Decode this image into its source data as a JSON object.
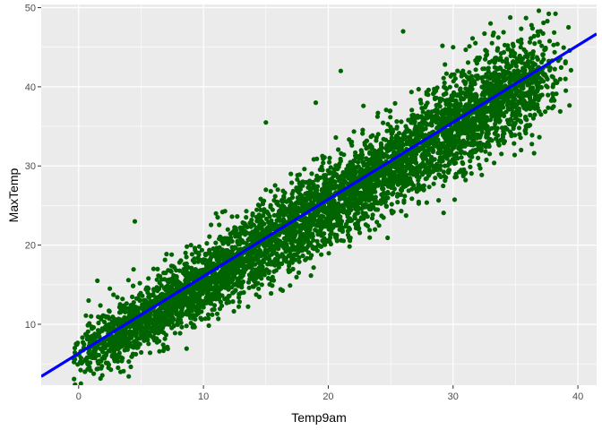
{
  "chart_data": {
    "type": "scatter",
    "xlabel": "Temp9am",
    "ylabel": "MaxTemp",
    "xlim": [
      -3,
      41.5
    ],
    "ylim": [
      2.3,
      50.4
    ],
    "x_ticks": [
      0,
      10,
      20,
      30,
      40
    ],
    "y_ticks": [
      10,
      20,
      30,
      40,
      50
    ],
    "x_tick_labels": [
      "0",
      "10",
      "20",
      "30",
      "40"
    ],
    "y_tick_labels": [
      "10",
      "20",
      "30",
      "40",
      "50"
    ],
    "grid": true,
    "points_sample": [
      {
        "x": 0.8,
        "y": 13.0
      },
      {
        "x": 1.5,
        "y": 15.5
      },
      {
        "x": 1.0,
        "y": 11.0
      },
      {
        "x": 0.5,
        "y": 4.0
      },
      {
        "x": 2.5,
        "y": 14.5
      },
      {
        "x": 3.0,
        "y": 7.5
      },
      {
        "x": 3.0,
        "y": 5.5
      },
      {
        "x": 4.0,
        "y": 12.0
      },
      {
        "x": 5.0,
        "y": 9.0
      },
      {
        "x": 6.0,
        "y": 17.0
      },
      {
        "x": 4.5,
        "y": 23.0
      },
      {
        "x": 7.0,
        "y": 10.0
      },
      {
        "x": 8.0,
        "y": 15.0
      },
      {
        "x": 9.0,
        "y": 20.0
      },
      {
        "x": 10.0,
        "y": 12.5
      },
      {
        "x": 11.0,
        "y": 24.0
      },
      {
        "x": 12.0,
        "y": 16.0
      },
      {
        "x": 13.0,
        "y": 22.0
      },
      {
        "x": 15.0,
        "y": 35.5
      },
      {
        "x": 14.0,
        "y": 19.0
      },
      {
        "x": 15.0,
        "y": 27.0
      },
      {
        "x": 16.0,
        "y": 22.0
      },
      {
        "x": 17.0,
        "y": 29.0
      },
      {
        "x": 18.0,
        "y": 24.0
      },
      {
        "x": 19.0,
        "y": 38.0
      },
      {
        "x": 20.0,
        "y": 27.0
      },
      {
        "x": 21.0,
        "y": 42.0
      },
      {
        "x": 22.0,
        "y": 30.0
      },
      {
        "x": 23.0,
        "y": 24.0
      },
      {
        "x": 24.0,
        "y": 34.0
      },
      {
        "x": 25.0,
        "y": 30.0
      },
      {
        "x": 26.0,
        "y": 47.0
      },
      {
        "x": 27.0,
        "y": 33.0
      },
      {
        "x": 28.0,
        "y": 39.0
      },
      {
        "x": 29.0,
        "y": 35.0
      },
      {
        "x": 30.0,
        "y": 45.0
      },
      {
        "x": 31.0,
        "y": 39.0
      },
      {
        "x": 32.0,
        "y": 31.0
      },
      {
        "x": 33.0,
        "y": 48.0
      },
      {
        "x": 34.0,
        "y": 42.0
      },
      {
        "x": 35.0,
        "y": 39.0
      },
      {
        "x": 36.0,
        "y": 44.0
      },
      {
        "x": 37.0,
        "y": 47.0
      },
      {
        "x": 38.0,
        "y": 40.0
      },
      {
        "x": 39.0,
        "y": 43.0
      },
      {
        "x": 39.0,
        "y": 41.0
      }
    ],
    "point_color": "#006400",
    "trend_line": {
      "x": [
        -3,
        41.5
      ],
      "y": [
        3.4,
        46.7
      ],
      "color": "#0000ff"
    },
    "panel_background": "#ebebeb",
    "grid_color": "#ffffff"
  }
}
